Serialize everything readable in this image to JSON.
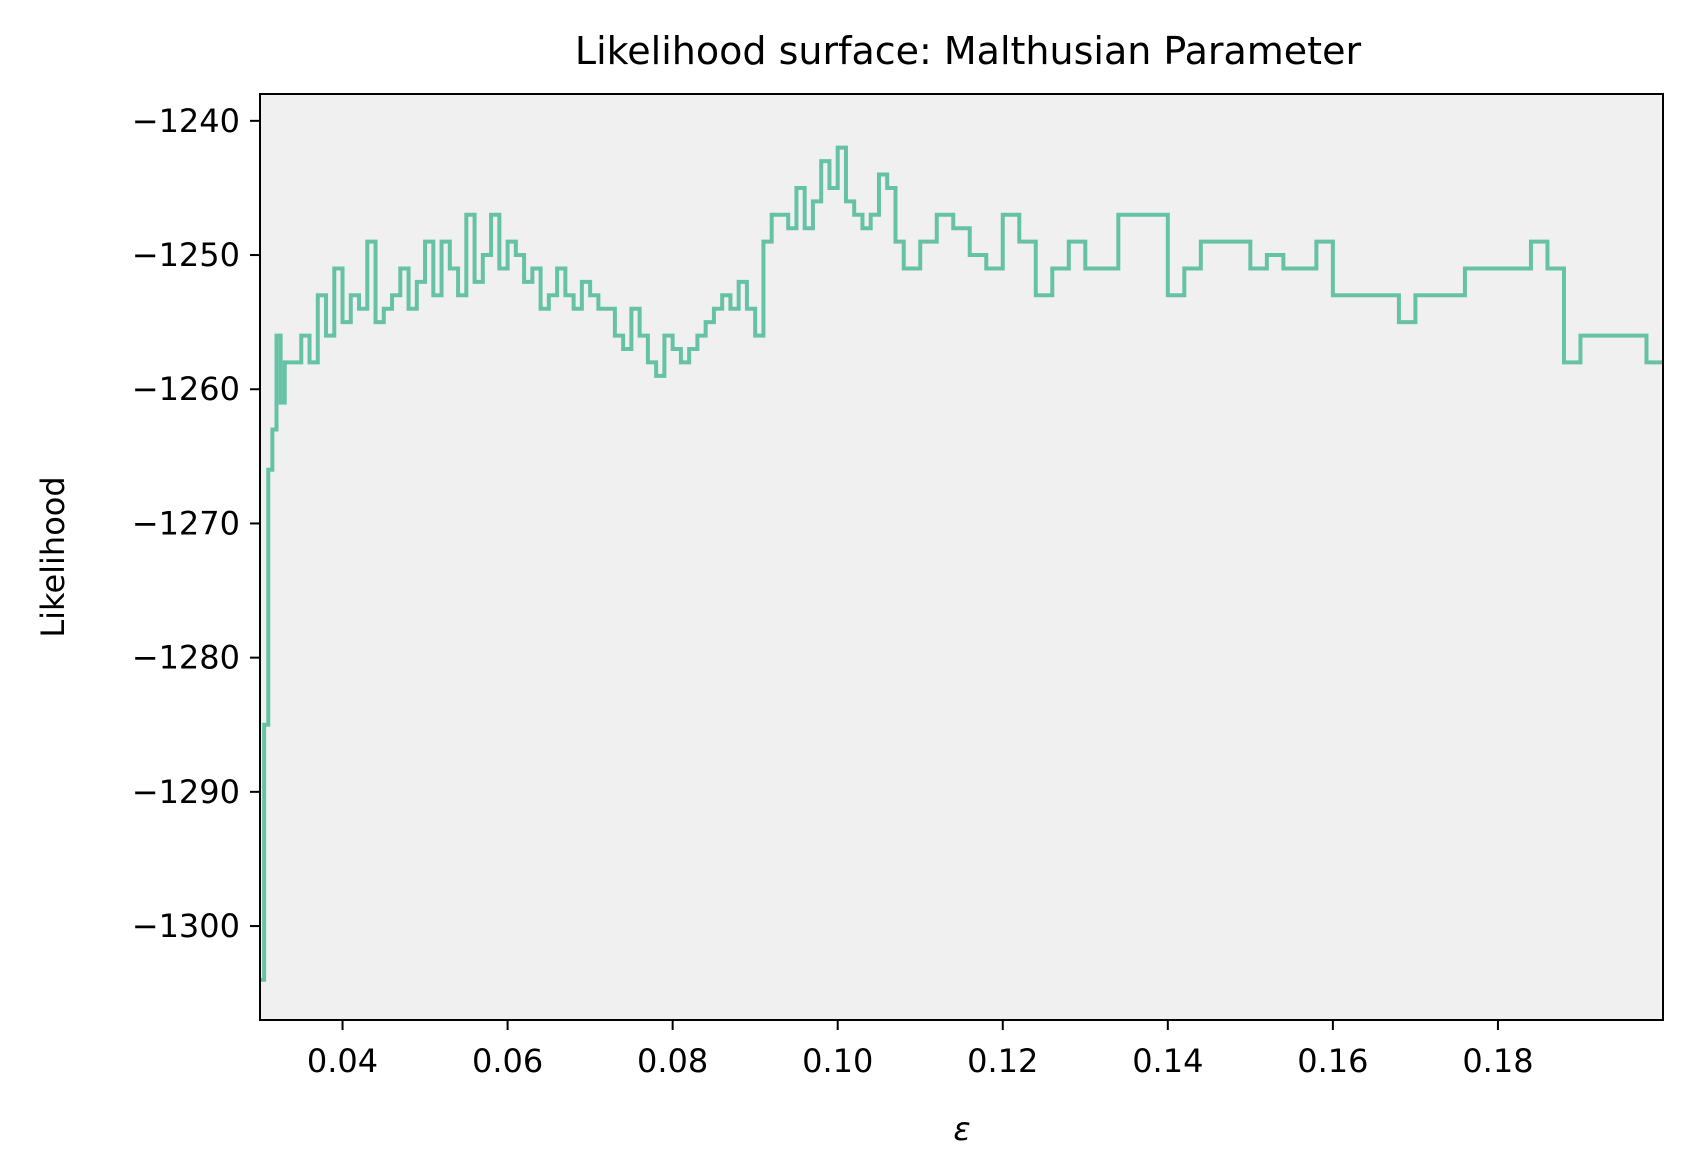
{
  "chart_data": {
    "type": "line",
    "title": "Likelihood surface: Malthusian Parameter",
    "xlabel": "ε",
    "ylabel": "Likelihood",
    "xlim": [
      0.03,
      0.2
    ],
    "ylim": [
      -1307,
      -1238
    ],
    "xticks": [
      0.04,
      0.06,
      0.08,
      0.1,
      0.12,
      0.14,
      0.16,
      0.18
    ],
    "xtick_labels": [
      "0.04",
      "0.06",
      "0.08",
      "0.10",
      "0.12",
      "0.14",
      "0.16",
      "0.18"
    ],
    "yticks": [
      -1240,
      -1250,
      -1260,
      -1270,
      -1280,
      -1290,
      -1300
    ],
    "ytick_labels": [
      "−1240",
      "−1250",
      "−1260",
      "−1270",
      "−1280",
      "−1290",
      "−1300"
    ],
    "grid": false,
    "background": "#f0f0f0",
    "series": [
      {
        "color": "#66c2a5",
        "x": [
          0.03,
          0.0305,
          0.031,
          0.0315,
          0.032,
          0.0325,
          0.033,
          0.034,
          0.035,
          0.036,
          0.037,
          0.038,
          0.039,
          0.04,
          0.041,
          0.042,
          0.043,
          0.044,
          0.045,
          0.046,
          0.047,
          0.048,
          0.049,
          0.05,
          0.051,
          0.052,
          0.053,
          0.054,
          0.055,
          0.056,
          0.057,
          0.058,
          0.059,
          0.06,
          0.061,
          0.062,
          0.063,
          0.064,
          0.065,
          0.066,
          0.067,
          0.068,
          0.069,
          0.07,
          0.071,
          0.072,
          0.073,
          0.074,
          0.075,
          0.076,
          0.077,
          0.078,
          0.079,
          0.08,
          0.081,
          0.082,
          0.083,
          0.084,
          0.085,
          0.086,
          0.087,
          0.088,
          0.089,
          0.09,
          0.091,
          0.092,
          0.093,
          0.094,
          0.095,
          0.096,
          0.097,
          0.098,
          0.099,
          0.1,
          0.101,
          0.102,
          0.103,
          0.104,
          0.105,
          0.106,
          0.107,
          0.108,
          0.109,
          0.11,
          0.112,
          0.114,
          0.116,
          0.118,
          0.12,
          0.122,
          0.124,
          0.126,
          0.128,
          0.13,
          0.132,
          0.134,
          0.136,
          0.138,
          0.14,
          0.142,
          0.144,
          0.146,
          0.148,
          0.15,
          0.152,
          0.154,
          0.156,
          0.158,
          0.16,
          0.162,
          0.164,
          0.166,
          0.168,
          0.17,
          0.172,
          0.174,
          0.176,
          0.178,
          0.18,
          0.182,
          0.184,
          0.186,
          0.188,
          0.19,
          0.192,
          0.194,
          0.196,
          0.198,
          0.2
        ],
        "values": [
          -1304,
          -1285,
          -1266,
          -1263,
          -1256,
          -1261,
          -1258,
          -1258,
          -1256,
          -1258,
          -1253,
          -1256,
          -1251,
          -1255,
          -1253,
          -1254,
          -1249,
          -1255,
          -1254,
          -1253,
          -1251,
          -1254,
          -1252,
          -1249,
          -1253,
          -1249,
          -1251,
          -1253,
          -1247,
          -1252,
          -1250,
          -1247,
          -1251,
          -1249,
          -1250,
          -1252,
          -1251,
          -1254,
          -1253,
          -1251,
          -1253,
          -1254,
          -1252,
          -1253,
          -1254,
          -1254,
          -1256,
          -1257,
          -1254,
          -1256,
          -1258,
          -1259,
          -1256,
          -1257,
          -1258,
          -1257,
          -1256,
          -1255,
          -1254,
          -1253,
          -1254,
          -1252,
          -1254,
          -1256,
          -1249,
          -1247,
          -1247,
          -1248,
          -1245,
          -1248,
          -1246,
          -1243,
          -1245,
          -1242,
          -1246,
          -1247,
          -1248,
          -1247,
          -1244,
          -1245,
          -1249,
          -1251,
          -1251,
          -1249,
          -1247,
          -1248,
          -1250,
          -1251,
          -1247,
          -1249,
          -1253,
          -1251,
          -1249,
          -1251,
          -1251,
          -1247,
          -1247,
          -1247,
          -1253,
          -1251,
          -1249,
          -1249,
          -1249,
          -1251,
          -1250,
          -1251,
          -1251,
          -1249,
          -1253,
          -1253,
          -1253,
          -1253,
          -1255,
          -1253,
          -1253,
          -1253,
          -1251,
          -1251,
          -1251,
          -1251,
          -1249,
          -1251,
          -1258,
          -1256,
          -1256,
          -1256,
          -1256,
          -1258,
          -1258
        ]
      }
    ]
  }
}
